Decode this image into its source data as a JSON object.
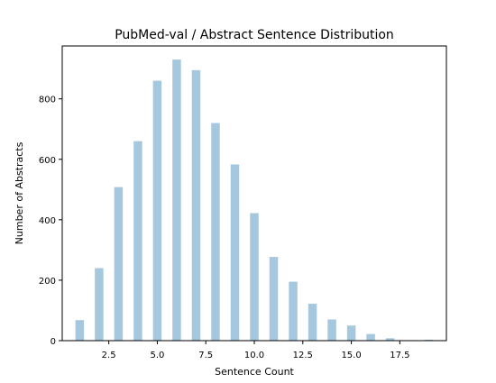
{
  "chart_data": {
    "type": "bar",
    "title": "PubMed-val / Abstract Sentence Distribution",
    "xlabel": "Sentence Count",
    "ylabel": "Number of Abstracts",
    "x": [
      1,
      2,
      3,
      4,
      5,
      6,
      7,
      8,
      9,
      10,
      11,
      12,
      13,
      14,
      15,
      16,
      17,
      18,
      19
    ],
    "values": [
      68,
      240,
      508,
      660,
      860,
      930,
      895,
      720,
      583,
      422,
      277,
      195,
      122,
      70,
      50,
      22,
      8,
      0,
      3
    ],
    "xlim": [
      0.1,
      19.9
    ],
    "ylim": [
      0,
      975
    ],
    "xticks": [
      2.5,
      5.0,
      7.5,
      10.0,
      12.5,
      15.0,
      17.5
    ],
    "xtick_labels": [
      "2.5",
      "5.0",
      "7.5",
      "10.0",
      "12.5",
      "15.0",
      "17.5"
    ],
    "yticks": [
      0,
      200,
      400,
      600,
      800
    ],
    "ytick_labels": [
      "0",
      "200",
      "400",
      "600",
      "800"
    ],
    "bar_color": "#a6c8df",
    "grid": false,
    "legend": "none"
  }
}
